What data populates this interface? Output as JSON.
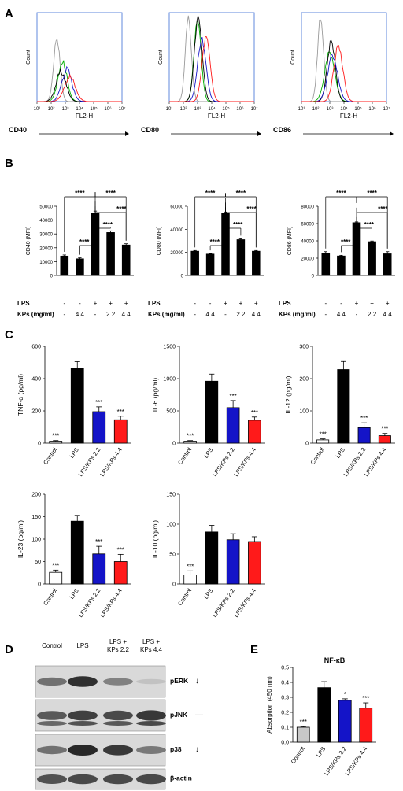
{
  "panel_letters": [
    "A",
    "B",
    "C",
    "D",
    "E"
  ],
  "colors": {
    "control": "#c8c8c8",
    "lps": "#000000",
    "kp22": "#1414c8",
    "kp44": "#ff1a1a",
    "green": "#00b000",
    "gray": "#9a9a9a"
  },
  "section_a": {
    "ylabel": "Count",
    "xlabel": "FL2-H",
    "tick_labels": [
      "10¹",
      "10²",
      "10³",
      "10⁴",
      "10⁵",
      "10⁶",
      "10⁷"
    ],
    "markers": [
      "CD40",
      "CD80",
      "CD86"
    ]
  },
  "section_b": {
    "row_labels": [
      "LPS",
      "KPs (mg/ml)"
    ],
    "lps_row": [
      "-",
      "-",
      "+",
      "+",
      "+"
    ],
    "kps_row": [
      "-",
      "4.4",
      "-",
      "2.2",
      "4.4"
    ],
    "sig": "****"
  },
  "section_d": {
    "lanes": [
      "Control",
      "LPS",
      "LPS +\nKPs 2.2",
      "LPS +\nKPs 4.4"
    ],
    "bands": [
      {
        "name": "pERK",
        "mark": "↓"
      },
      {
        "name": "pJNK",
        "mark": "—"
      },
      {
        "name": "p38",
        "mark": "↓"
      },
      {
        "name": "β-actin",
        "mark": ""
      }
    ]
  },
  "chart_data": [
    {
      "type": "bar",
      "panel": "B",
      "ylabel": "CD40 (MFI)",
      "ylim": [
        0,
        50000
      ],
      "ticks": [
        "0",
        "10000",
        "20000",
        "30000",
        "40000",
        "50000"
      ],
      "values": [
        14000,
        12000,
        45000,
        31000,
        22000
      ],
      "errors": [
        800,
        700,
        1500,
        1200,
        900
      ]
    },
    {
      "type": "bar",
      "panel": "B",
      "ylabel": "CD80 (MFI)",
      "ylim": [
        0,
        60000
      ],
      "ticks": [
        "0",
        "20000",
        "40000",
        "60000"
      ],
      "values": [
        21000,
        18500,
        54000,
        31000,
        21000
      ],
      "errors": [
        600,
        500,
        1000,
        800,
        600
      ]
    },
    {
      "type": "bar",
      "panel": "B",
      "ylabel": "CD86 (MFI)",
      "ylim": [
        0,
        80000
      ],
      "ticks": [
        "0",
        "20000",
        "40000",
        "60000",
        "80000"
      ],
      "values": [
        26000,
        22500,
        61000,
        39000,
        25000
      ],
      "errors": [
        1500,
        800,
        900,
        800,
        2500
      ]
    },
    {
      "type": "bar",
      "panel": "C",
      "ylabel": "TNF-α (pg/ml)",
      "ylim": [
        0,
        600
      ],
      "ticks": [
        "0",
        "200",
        "400",
        "600"
      ],
      "categories": [
        "Control",
        "LPS",
        "LPS/KPs 2.2",
        "LPS/KPs 4.4"
      ],
      "values": [
        12,
        465,
        195,
        145
      ],
      "errors": [
        4,
        40,
        30,
        22
      ],
      "stars": [
        "***",
        "",
        "***",
        "***"
      ]
    },
    {
      "type": "bar",
      "panel": "C",
      "ylabel": "IL-6 (pg/ml)",
      "ylim": [
        0,
        1500
      ],
      "ticks": [
        "0",
        "500",
        "1000",
        "1500"
      ],
      "categories": [
        "Control",
        "LPS",
        "LPS/KPs 2.2",
        "LPS/KPs 4.4"
      ],
      "values": [
        30,
        960,
        550,
        355
      ],
      "errors": [
        10,
        110,
        110,
        50
      ],
      "stars": [
        "***",
        "",
        "***",
        "***"
      ]
    },
    {
      "type": "bar",
      "panel": "C",
      "ylabel": "IL-12 (pg/ml)",
      "ylim": [
        0,
        300
      ],
      "ticks": [
        "0",
        "100",
        "200",
        "300"
      ],
      "categories": [
        "Control",
        "LPS",
        "LPS/KPs 2.2",
        "LPS/KPs 4.4"
      ],
      "values": [
        10,
        228,
        48,
        23
      ],
      "errors": [
        3,
        25,
        15,
        7
      ],
      "stars": [
        "***",
        "",
        "***",
        "***"
      ]
    },
    {
      "type": "bar",
      "panel": "C",
      "ylabel": "IL-23 (pg/ml)",
      "ylim": [
        0,
        200
      ],
      "ticks": [
        "0",
        "50",
        "100",
        "150",
        "200"
      ],
      "categories": [
        "Control",
        "LPS",
        "LPS/KPs 2.2",
        "LPS/KPs 4.4"
      ],
      "values": [
        26,
        140,
        67,
        50
      ],
      "errors": [
        5,
        13,
        17,
        16
      ],
      "stars": [
        "***",
        "",
        "***",
        "***"
      ]
    },
    {
      "type": "bar",
      "panel": "C",
      "ylabel": "IL-10 (pg/ml)",
      "ylim": [
        0,
        150
      ],
      "ticks": [
        "0",
        "50",
        "100",
        "150"
      ],
      "categories": [
        "Control",
        "LPS",
        "LPS/KPs 2.2",
        "LPS/KPs 4.4"
      ],
      "values": [
        15,
        87,
        74,
        71
      ],
      "errors": [
        7,
        11,
        10,
        8
      ],
      "stars": [
        "***",
        "",
        "",
        ""
      ]
    },
    {
      "type": "bar",
      "panel": "E",
      "title": "NF-κB",
      "ylabel": "Absorption (450 nm)",
      "ylim": [
        0,
        0.5
      ],
      "ticks": [
        "0.0",
        "0.1",
        "0.2",
        "0.3",
        "0.4",
        "0.5"
      ],
      "categories": [
        "Control",
        "LPS",
        "LPS/KPs 2.2",
        "LPS/KPs 4.4"
      ],
      "values": [
        0.1,
        0.365,
        0.28,
        0.228
      ],
      "errors": [
        0.005,
        0.04,
        0.01,
        0.035
      ],
      "stars": [
        "***",
        "",
        "*",
        "***"
      ]
    }
  ]
}
